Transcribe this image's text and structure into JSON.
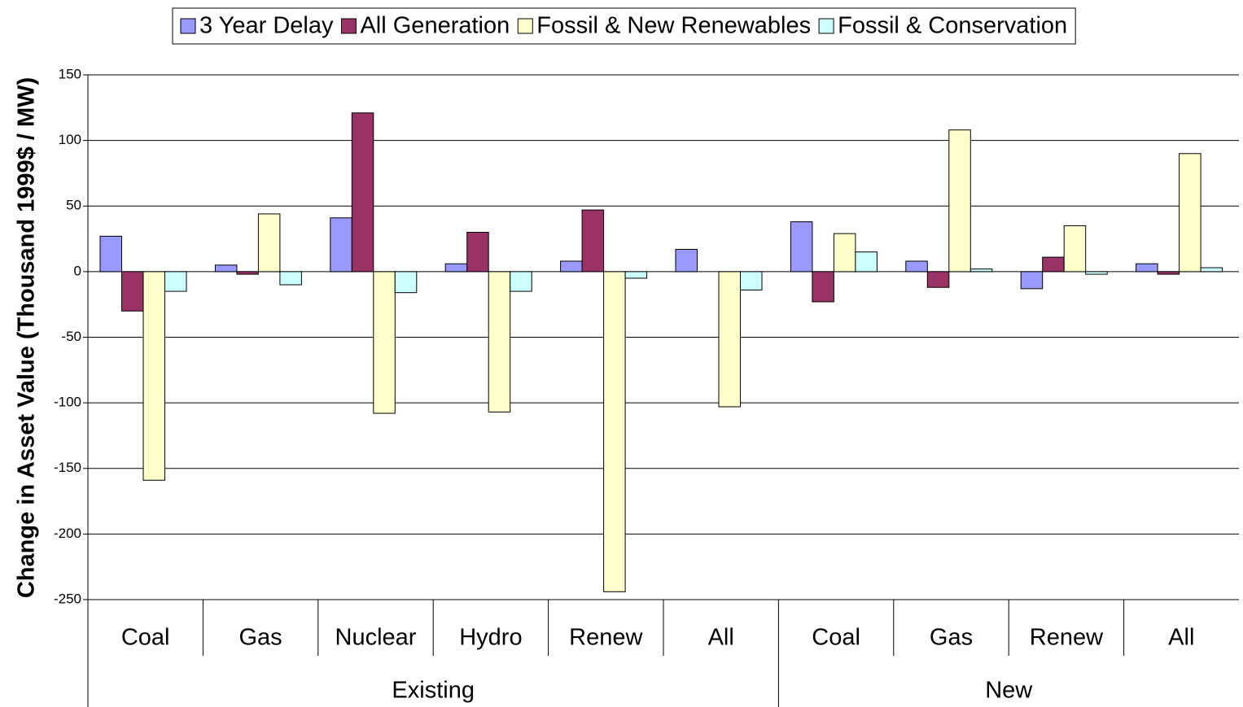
{
  "chart_data": {
    "type": "bar",
    "ylabel": "Change in Asset Value (Thousand 1999$ / MW)",
    "groups": [
      {
        "name": "Existing",
        "categories": [
          "Coal",
          "Gas",
          "Nuclear",
          "Hydro",
          "Renew",
          "All"
        ]
      },
      {
        "name": "New",
        "categories": [
          "Coal",
          "Gas",
          "Renew",
          "All"
        ]
      }
    ],
    "series": [
      {
        "name": "3 Year Delay",
        "color": "#9999ff",
        "values": [
          27,
          5,
          41,
          6,
          8,
          17,
          38,
          8,
          -13,
          6
        ]
      },
      {
        "name": "All Generation",
        "color": "#993366",
        "values": [
          -30,
          -2,
          121,
          30,
          47,
          0,
          -23,
          -12,
          11,
          -2
        ]
      },
      {
        "name": "Fossil & New Renewables",
        "color": "#ffffcc",
        "values": [
          -159,
          44,
          -108,
          -107,
          -244,
          -103,
          29,
          108,
          35,
          90
        ]
      },
      {
        "name": "Fossil & Conservation",
        "color": "#ccffff",
        "values": [
          -15,
          -10,
          -16,
          -15,
          -5,
          -14,
          15,
          2,
          -2,
          3
        ]
      }
    ],
    "ylim": [
      -250,
      150
    ],
    "yticks": [
      -250,
      -200,
      -150,
      -100,
      -50,
      0,
      50,
      100,
      150
    ],
    "grid": true,
    "legend": "top"
  }
}
